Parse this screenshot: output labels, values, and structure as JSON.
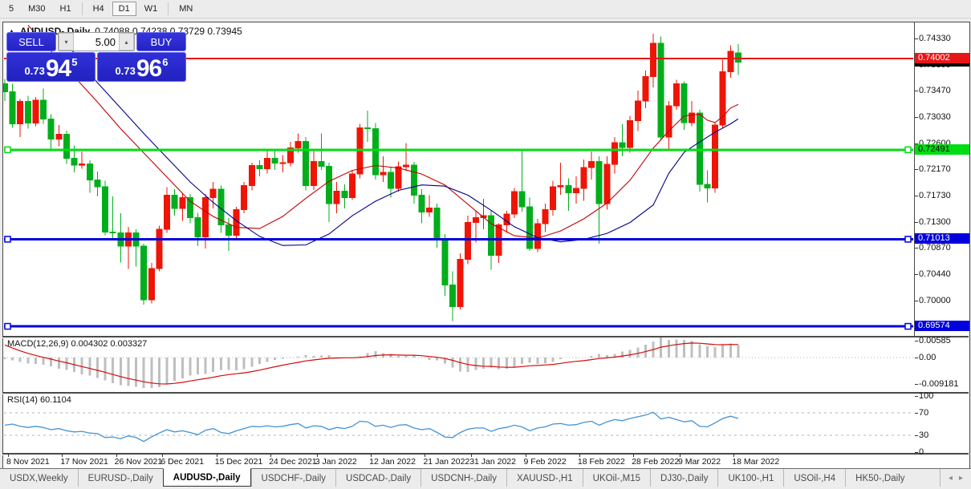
{
  "toolbar": {
    "timeframes": [
      "5",
      "M30",
      "H1",
      "H4",
      "D1",
      "W1",
      "MN"
    ],
    "active": "D1",
    "separators_after": [
      3,
      6
    ]
  },
  "header": {
    "symbol_title": "AUDUSD-,Daily",
    "ohlc_text": "0.74088 0.74238 0.73729 0.73945"
  },
  "trade_panel": {
    "sell_label": "SELL",
    "buy_label": "BUY",
    "volume": "5.00",
    "sell_prefix": "0.73",
    "sell_big": "94",
    "sell_sup": "5",
    "buy_prefix": "0.73",
    "buy_big": "96",
    "buy_sup": "6"
  },
  "icons": {
    "collapse_arrow": "▲",
    "spinner_down": "▾",
    "spinner_up": "▴",
    "scroll_left": "◂",
    "scroll_right": "▸"
  },
  "price_axis_ticks": [
    "0.74330",
    "0.73890",
    "0.73470",
    "0.73030",
    "0.72600",
    "0.72170",
    "0.71730",
    "0.71300",
    "0.70870",
    "0.70440",
    "0.70000"
  ],
  "price_badges": [
    {
      "label": "0.73945",
      "bg": "#000000",
      "fg": "#ffffff",
      "z": 4
    },
    {
      "label": "0.74002",
      "bg": "#e81717",
      "fg": "#ffffff",
      "z": 5
    },
    {
      "label": "0.72491",
      "bg": "#00dd12",
      "fg": "#000000",
      "z": 3
    },
    {
      "label": "0.71013",
      "bg": "#0202dd",
      "fg": "#ffffff",
      "z": 3
    },
    {
      "label": "0.69574",
      "bg": "#0202dd",
      "fg": "#ffffff",
      "z": 3
    }
  ],
  "hlines": [
    {
      "price": 0.74002,
      "color": "#e81717",
      "width": 2,
      "handles": false
    },
    {
      "price": 0.72491,
      "color": "#00dd12",
      "width": 3,
      "handles": true
    },
    {
      "price": 0.71013,
      "color": "#0202dd",
      "width": 3,
      "handles": true
    },
    {
      "price": 0.69574,
      "color": "#0202dd",
      "width": 3,
      "handles": true
    }
  ],
  "date_ticks": [
    {
      "i": 0,
      "label": "8 Nov 2021"
    },
    {
      "i": 7,
      "label": "17 Nov 2021"
    },
    {
      "i": 14,
      "label": "26 Nov 2021"
    },
    {
      "i": 20,
      "label": "6 Dec 2021"
    },
    {
      "i": 27,
      "label": "15 Dec 2021"
    },
    {
      "i": 34,
      "label": "24 Dec 2021"
    },
    {
      "i": 40,
      "label": "3 Jan 2022"
    },
    {
      "i": 47,
      "label": "12 Jan 2022"
    },
    {
      "i": 54,
      "label": "21 Jan 2022"
    },
    {
      "i": 60,
      "label": "31 Jan 2022"
    },
    {
      "i": 67,
      "label": "9 Feb 2022"
    },
    {
      "i": 74,
      "label": "18 Feb 2022"
    },
    {
      "i": 81,
      "label": "28 Feb 2022"
    },
    {
      "i": 87,
      "label": "9 Mar 2022"
    },
    {
      "i": 94,
      "label": "18 Mar 2022"
    }
  ],
  "tabs": {
    "items": [
      "USDX,Weekly",
      "EURUSD-,Daily",
      "AUDUSD-,Daily",
      "USDCHF-,Daily",
      "USDCAD-,Daily",
      "USDCNH-,Daily",
      "XAUUSD-,H1",
      "UKOil-,M15",
      "DJ30-,Daily",
      "UK100-,H1",
      "USOil-,H4",
      "HK50-,Daily"
    ],
    "active_index": 2
  },
  "colors": {
    "up": "#ee1507",
    "down": "#00ae1c",
    "ma_fast": "#c40000",
    "ma_slow": "#00008b",
    "macd_hist": "#bfbfbf",
    "macd_signal": "#d40b0b",
    "rsi_line": "#4393d7",
    "level_dash": "#b5b5b5"
  },
  "chart_data": {
    "type": "candlestick",
    "symbol": "AUDUSD",
    "timeframe": "Daily",
    "note_color_convention": "red = bullish, green = bearish",
    "current_bar": {
      "open": "0.74088",
      "high": "0.74238",
      "low": "0.73729",
      "close": "0.73945"
    },
    "y_axis_range": [
      0.692,
      0.7445
    ],
    "candles": [
      [
        0.7358,
        0.7366,
        0.733,
        0.7345
      ],
      [
        0.7345,
        0.7358,
        0.7285,
        0.7292
      ],
      [
        0.7292,
        0.7333,
        0.727,
        0.7329
      ],
      [
        0.7329,
        0.7338,
        0.7284,
        0.7293
      ],
      [
        0.7293,
        0.7336,
        0.7288,
        0.7331
      ],
      [
        0.7331,
        0.735,
        0.7292,
        0.73
      ],
      [
        0.73,
        0.7308,
        0.725,
        0.7267
      ],
      [
        0.7267,
        0.729,
        0.7255,
        0.7275
      ],
      [
        0.7275,
        0.7281,
        0.7226,
        0.7235
      ],
      [
        0.7235,
        0.7256,
        0.7212,
        0.7224
      ],
      [
        0.7224,
        0.7246,
        0.7218,
        0.7226
      ],
      [
        0.7226,
        0.7232,
        0.7178,
        0.7199
      ],
      [
        0.7199,
        0.7213,
        0.7172,
        0.7188
      ],
      [
        0.7188,
        0.7198,
        0.7108,
        0.7113
      ],
      [
        0.7113,
        0.7172,
        0.71,
        0.7112
      ],
      [
        0.7112,
        0.7144,
        0.7063,
        0.709
      ],
      [
        0.709,
        0.7122,
        0.7052,
        0.7112
      ],
      [
        0.7112,
        0.7118,
        0.7056,
        0.709
      ],
      [
        0.709,
        0.7094,
        0.6993,
        0.7001
      ],
      [
        0.7001,
        0.7062,
        0.6995,
        0.7053
      ],
      [
        0.7053,
        0.7124,
        0.7048,
        0.7118
      ],
      [
        0.7118,
        0.7187,
        0.7112,
        0.7174
      ],
      [
        0.7174,
        0.7184,
        0.714,
        0.7152
      ],
      [
        0.7152,
        0.7178,
        0.7132,
        0.717
      ],
      [
        0.717,
        0.7176,
        0.7128,
        0.7137
      ],
      [
        0.7137,
        0.7145,
        0.709,
        0.7105
      ],
      [
        0.7105,
        0.7176,
        0.7086,
        0.717
      ],
      [
        0.717,
        0.7196,
        0.7152,
        0.7184
      ],
      [
        0.7184,
        0.719,
        0.7112,
        0.7125
      ],
      [
        0.7125,
        0.7136,
        0.7082,
        0.7108
      ],
      [
        0.7108,
        0.7155,
        0.71,
        0.715
      ],
      [
        0.715,
        0.7196,
        0.7144,
        0.719
      ],
      [
        0.719,
        0.7228,
        0.7182,
        0.7223
      ],
      [
        0.7223,
        0.7232,
        0.7205,
        0.7218
      ],
      [
        0.7218,
        0.7247,
        0.721,
        0.7235
      ],
      [
        0.7235,
        0.725,
        0.7216,
        0.7227
      ],
      [
        0.7227,
        0.724,
        0.7212,
        0.7228
      ],
      [
        0.7228,
        0.7262,
        0.7222,
        0.7252
      ],
      [
        0.7252,
        0.7276,
        0.7244,
        0.7263
      ],
      [
        0.7263,
        0.727,
        0.7182,
        0.719
      ],
      [
        0.719,
        0.7248,
        0.7183,
        0.723
      ],
      [
        0.723,
        0.7276,
        0.7216,
        0.7222
      ],
      [
        0.7222,
        0.7228,
        0.713,
        0.716
      ],
      [
        0.716,
        0.7196,
        0.7144,
        0.7181
      ],
      [
        0.7181,
        0.7192,
        0.7152,
        0.717
      ],
      [
        0.717,
        0.7215,
        0.7166,
        0.7209
      ],
      [
        0.7209,
        0.7292,
        0.7202,
        0.7285
      ],
      [
        0.7285,
        0.7314,
        0.7262,
        0.7284
      ],
      [
        0.7284,
        0.7293,
        0.72,
        0.7208
      ],
      [
        0.7208,
        0.7238,
        0.7196,
        0.7212
      ],
      [
        0.7212,
        0.722,
        0.717,
        0.7185
      ],
      [
        0.7185,
        0.723,
        0.718,
        0.7221
      ],
      [
        0.7221,
        0.726,
        0.7214,
        0.7224
      ],
      [
        0.7224,
        0.7229,
        0.716,
        0.7174
      ],
      [
        0.7174,
        0.7184,
        0.7128,
        0.7146
      ],
      [
        0.7146,
        0.7174,
        0.7138,
        0.7153
      ],
      [
        0.7153,
        0.716,
        0.7087,
        0.71
      ],
      [
        0.71,
        0.711,
        0.7008,
        0.7026
      ],
      [
        0.7026,
        0.7048,
        0.6966,
        0.699
      ],
      [
        0.699,
        0.7078,
        0.6985,
        0.7068
      ],
      [
        0.7068,
        0.714,
        0.706,
        0.7129
      ],
      [
        0.7129,
        0.7149,
        0.7096,
        0.7137
      ],
      [
        0.7137,
        0.7168,
        0.7118,
        0.714
      ],
      [
        0.714,
        0.7148,
        0.7051,
        0.7075
      ],
      [
        0.7075,
        0.7128,
        0.7062,
        0.7125
      ],
      [
        0.7125,
        0.7148,
        0.7112,
        0.7143
      ],
      [
        0.7143,
        0.7186,
        0.7136,
        0.718
      ],
      [
        0.718,
        0.7249,
        0.7147,
        0.7155
      ],
      [
        0.7155,
        0.717,
        0.7082,
        0.7086
      ],
      [
        0.7086,
        0.7135,
        0.708,
        0.7127
      ],
      [
        0.7127,
        0.716,
        0.7113,
        0.715
      ],
      [
        0.715,
        0.7198,
        0.714,
        0.7188
      ],
      [
        0.7188,
        0.7228,
        0.7175,
        0.719
      ],
      [
        0.719,
        0.7202,
        0.7148,
        0.7178
      ],
      [
        0.7178,
        0.7205,
        0.716,
        0.7185
      ],
      [
        0.7185,
        0.7233,
        0.7165,
        0.722
      ],
      [
        0.722,
        0.7246,
        0.72,
        0.723
      ],
      [
        0.723,
        0.7238,
        0.7094,
        0.716
      ],
      [
        0.716,
        0.7238,
        0.715,
        0.7225
      ],
      [
        0.7225,
        0.727,
        0.721,
        0.7261
      ],
      [
        0.7261,
        0.7291,
        0.7238,
        0.7253
      ],
      [
        0.7253,
        0.7305,
        0.7244,
        0.7297
      ],
      [
        0.7297,
        0.7347,
        0.728,
        0.733
      ],
      [
        0.733,
        0.738,
        0.7318,
        0.737
      ],
      [
        0.737,
        0.7441,
        0.7352,
        0.7425
      ],
      [
        0.7425,
        0.7436,
        0.7264,
        0.727
      ],
      [
        0.727,
        0.733,
        0.725,
        0.7322
      ],
      [
        0.7322,
        0.7365,
        0.7315,
        0.7358
      ],
      [
        0.7358,
        0.7362,
        0.7282,
        0.7294
      ],
      [
        0.7294,
        0.733,
        0.7288,
        0.731
      ],
      [
        0.731,
        0.7315,
        0.718,
        0.7192
      ],
      [
        0.7192,
        0.7215,
        0.7162,
        0.7186
      ],
      [
        0.7186,
        0.7295,
        0.7178,
        0.729
      ],
      [
        0.729,
        0.7398,
        0.7285,
        0.7378
      ],
      [
        0.7378,
        0.7422,
        0.7368,
        0.7412
      ],
      [
        0.7409,
        0.7424,
        0.7373,
        0.7394
      ]
    ],
    "ma_fast_red": [
      [
        3,
        0.7455
      ],
      [
        6,
        0.7412
      ],
      [
        9,
        0.737
      ],
      [
        12,
        0.7328
      ],
      [
        15,
        0.7284
      ],
      [
        18,
        0.7244
      ],
      [
        21,
        0.7204
      ],
      [
        24,
        0.7164
      ],
      [
        27,
        0.7139
      ],
      [
        30,
        0.7121
      ],
      [
        33,
        0.7119
      ],
      [
        36,
        0.7139
      ],
      [
        39,
        0.7169
      ],
      [
        42,
        0.7197
      ],
      [
        45,
        0.7215
      ],
      [
        48,
        0.7223
      ],
      [
        51,
        0.7219
      ],
      [
        54,
        0.7209
      ],
      [
        57,
        0.7191
      ],
      [
        60,
        0.7159
      ],
      [
        63,
        0.7127
      ],
      [
        66,
        0.7107
      ],
      [
        69,
        0.7103
      ],
      [
        72,
        0.7115
      ],
      [
        75,
        0.7135
      ],
      [
        78,
        0.7161
      ],
      [
        81,
        0.7199
      ],
      [
        84,
        0.7252
      ],
      [
        86,
        0.728
      ],
      [
        88,
        0.7305
      ],
      [
        90,
        0.7308
      ],
      [
        91,
        0.7298
      ],
      [
        92,
        0.7294
      ],
      [
        93,
        0.7304
      ],
      [
        94,
        0.7318
      ],
      [
        95,
        0.7324
      ]
    ],
    "ma_slow_blue": [
      [
        8,
        0.7425
      ],
      [
        10,
        0.7392
      ],
      [
        12,
        0.736
      ],
      [
        15,
        0.7318
      ],
      [
        18,
        0.7276
      ],
      [
        21,
        0.7236
      ],
      [
        24,
        0.7196
      ],
      [
        27,
        0.7162
      ],
      [
        30,
        0.7132
      ],
      [
        33,
        0.7106
      ],
      [
        36,
        0.7091
      ],
      [
        39,
        0.7092
      ],
      [
        42,
        0.711
      ],
      [
        45,
        0.714
      ],
      [
        48,
        0.7164
      ],
      [
        51,
        0.7182
      ],
      [
        54,
        0.7191
      ],
      [
        57,
        0.7189
      ],
      [
        60,
        0.7174
      ],
      [
        63,
        0.7149
      ],
      [
        66,
        0.7122
      ],
      [
        69,
        0.7104
      ],
      [
        72,
        0.7097
      ],
      [
        75,
        0.7101
      ],
      [
        78,
        0.7111
      ],
      [
        81,
        0.7129
      ],
      [
        84,
        0.7158
      ],
      [
        86,
        0.721
      ],
      [
        88,
        0.7245
      ],
      [
        90,
        0.7262
      ],
      [
        92,
        0.7278
      ],
      [
        94,
        0.7292
      ],
      [
        95,
        0.73
      ]
    ],
    "macd": {
      "label": "MACD(12,26,9)",
      "values_text": "0.004302 0.003327",
      "axis_ticks": [
        "0.00585",
        "0.00",
        "-0.009181"
      ],
      "signal_seed": 0.0055,
      "hist": [
        -0.0005,
        -0.001,
        -0.0015,
        -0.002,
        -0.0022,
        -0.0025,
        -0.003,
        -0.0038,
        -0.0042,
        -0.005,
        -0.0058,
        -0.0062,
        -0.007,
        -0.0078,
        -0.0088,
        -0.0095,
        -0.0098,
        -0.01,
        -0.0104,
        -0.0105,
        -0.0102,
        -0.0092,
        -0.008,
        -0.0072,
        -0.0062,
        -0.0058,
        -0.0056,
        -0.005,
        -0.0042,
        -0.0042,
        -0.0044,
        -0.004,
        -0.0032,
        -0.0022,
        -0.0015,
        -0.0008,
        -0.0004,
        -0.0002,
        0.0003,
        0.0008,
        0.0005,
        0.0007,
        0.0008,
        0.0002,
        0.0002,
        0.0,
        0.0004,
        0.0015,
        0.0022,
        0.0015,
        0.0012,
        0.0005,
        0.0006,
        0.0008,
        0.0,
        -0.0008,
        -0.001,
        -0.002,
        -0.0035,
        -0.0048,
        -0.005,
        -0.0042,
        -0.0038,
        -0.0034,
        -0.004,
        -0.0038,
        -0.0032,
        -0.0022,
        -0.0018,
        -0.0022,
        -0.002,
        -0.0015,
        -0.0006,
        0.0,
        -0.0002,
        0.0,
        0.0006,
        0.0012,
        0.0008,
        0.0012,
        0.002,
        0.0026,
        0.0034,
        0.0044,
        0.0055,
        0.0068,
        0.006,
        0.0062,
        0.006,
        0.0058,
        0.0045,
        0.0038,
        0.0036,
        0.0042,
        0.0048,
        0.0043
      ]
    },
    "rsi": {
      "label": "RSI(14)",
      "value_text": "60.1104",
      "axis_ticks": [
        "100",
        "70",
        "30",
        "0"
      ],
      "levels": [
        70,
        30
      ],
      "values": [
        48,
        50,
        46,
        44,
        46,
        44,
        40,
        42,
        38,
        36,
        37,
        34,
        33,
        26,
        27,
        24,
        29,
        26,
        19,
        27,
        34,
        40,
        36,
        38,
        35,
        31,
        39,
        42,
        35,
        33,
        38,
        42,
        46,
        45,
        47,
        45,
        46,
        49,
        51,
        43,
        47,
        46,
        40,
        44,
        42,
        46,
        55,
        54,
        46,
        48,
        44,
        48,
        49,
        43,
        40,
        42,
        35,
        27,
        26,
        35,
        41,
        43,
        43,
        37,
        42,
        44,
        48,
        45,
        38,
        43,
        45,
        50,
        51,
        48,
        49,
        53,
        55,
        48,
        54,
        58,
        56,
        60,
        63,
        66,
        71,
        59,
        62,
        58,
        54,
        56,
        46,
        45,
        52,
        60,
        64,
        60
      ]
    }
  }
}
